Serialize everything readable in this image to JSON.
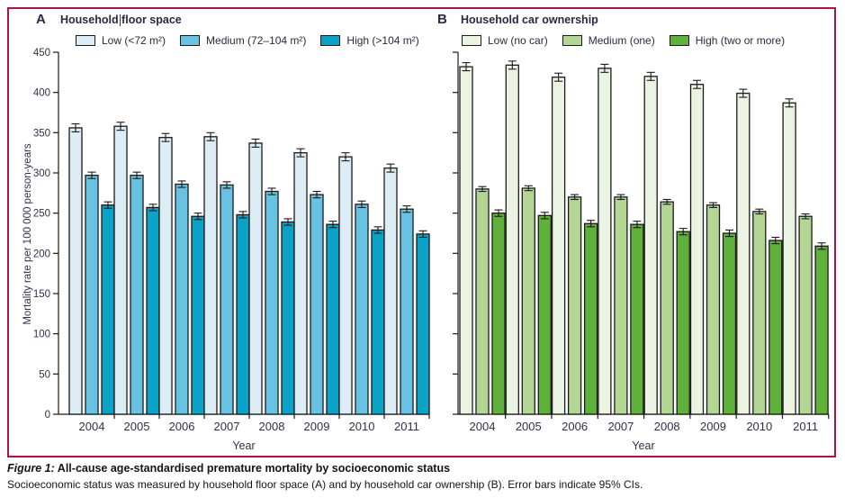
{
  "figure": {
    "border_color": "#ae1246",
    "ylabel": "Mortality rate per 100 000 person-years",
    "caption": {
      "label": "Figure 1:",
      "title": " All-cause age-standardised premature mortality by socioeconomic status",
      "body": "Socioeconomic status was measured by household floor space (A) and by household car ownership (B). Error bars indicate 95% CIs."
    }
  },
  "style": {
    "axis_color": "#1a1a1a",
    "text_color": "#2f2f4c",
    "title_color": "#29293f"
  },
  "chart_data": [
    {
      "panel": "A",
      "type": "bar",
      "title": "Household floor space",
      "xlabel": "Year",
      "ylabel": "Mortality rate per 100 000 person-years",
      "ylim": [
        0,
        450
      ],
      "ytick_step": 50,
      "y_axis_labels": true,
      "grid": false,
      "legend_position": "top",
      "error_bars": "95% CI",
      "categories": [
        "2004",
        "2005",
        "2006",
        "2007",
        "2008",
        "2009",
        "2010",
        "2011"
      ],
      "series": [
        {
          "name": "Low (<72 m²)",
          "color": "#dcedf6",
          "error": 5,
          "values": [
            356,
            358,
            344,
            345,
            337,
            325,
            320,
            306
          ]
        },
        {
          "name": "Medium (72–104 m²)",
          "color": "#68c3e2",
          "error": 4,
          "values": [
            297,
            297,
            286,
            285,
            277,
            273,
            261,
            255
          ]
        },
        {
          "name": "High (>104 m²)",
          "color": "#0ca2c8",
          "error": 4,
          "values": [
            260,
            257,
            246,
            248,
            239,
            236,
            229,
            224
          ]
        }
      ]
    },
    {
      "panel": "B",
      "type": "bar",
      "title": "Household car ownership",
      "xlabel": "Year",
      "ylabel": "Mortality rate per 100 000 person-years",
      "ylim": [
        0,
        450
      ],
      "ytick_step": 50,
      "y_axis_labels": false,
      "grid": false,
      "legend_position": "top",
      "error_bars": "95% CI",
      "categories": [
        "2004",
        "2005",
        "2006",
        "2007",
        "2008",
        "2009",
        "2010",
        "2011"
      ],
      "series": [
        {
          "name": "Low (no car)",
          "color": "#ebf3e2",
          "error": 5,
          "values": [
            432,
            434,
            419,
            430,
            420,
            410,
            399,
            387
          ]
        },
        {
          "name": "Medium (one)",
          "color": "#b4d694",
          "error": 3,
          "values": [
            280,
            281,
            270,
            270,
            264,
            260,
            252,
            246
          ]
        },
        {
          "name": "High (two or more)",
          "color": "#60b03c",
          "error": 4,
          "values": [
            250,
            247,
            237,
            236,
            227,
            225,
            216,
            209
          ]
        }
      ]
    }
  ]
}
